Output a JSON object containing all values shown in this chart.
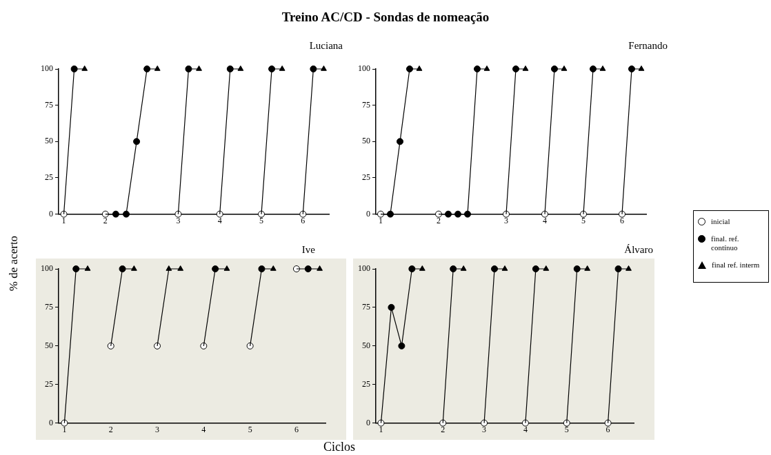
{
  "chart_data": [
    {
      "type": "line",
      "title": "Treino AC/CD - Sondas de nomeação",
      "ylabel": "% de acerto",
      "xlabel": "Ciclos",
      "subtitle": "Luciana",
      "ylim": [
        0,
        100
      ],
      "yticks": [
        0,
        25,
        50,
        75,
        100
      ],
      "grid": false,
      "categories": [
        "1",
        null,
        null,
        null,
        "2",
        null,
        null,
        null,
        null,
        null,
        null,
        "3",
        null,
        null,
        null,
        "4",
        null,
        null,
        null,
        "5",
        null,
        null,
        null,
        "6",
        null,
        null
      ],
      "series": [
        {
          "type": "line",
          "marker": "none",
          "color": "#000000",
          "values": [
            0,
            100,
            100,
            null,
            0,
            0,
            0,
            50,
            100,
            100,
            null,
            0,
            100,
            100,
            null,
            0,
            100,
            100,
            null,
            0,
            100,
            100,
            null,
            0,
            100,
            100
          ]
        },
        {
          "type": "scatter",
          "marker": "circle",
          "color": "#ffffff",
          "values": [
            0,
            null,
            null,
            null,
            0,
            null,
            null,
            null,
            null,
            null,
            null,
            0,
            null,
            null,
            null,
            0,
            null,
            null,
            null,
            0,
            null,
            null,
            null,
            0,
            null,
            null
          ]
        },
        {
          "type": "scatter",
          "marker": "circle",
          "color": "#000000",
          "values": [
            null,
            100,
            null,
            null,
            null,
            0,
            0,
            50,
            100,
            null,
            null,
            null,
            100,
            null,
            null,
            null,
            100,
            null,
            null,
            null,
            100,
            null,
            null,
            null,
            100,
            null
          ]
        },
        {
          "type": "scatter",
          "marker": "triangle",
          "color": "#000000",
          "values": [
            null,
            null,
            100,
            null,
            null,
            null,
            null,
            null,
            null,
            100,
            null,
            null,
            null,
            100,
            null,
            null,
            null,
            100,
            null,
            null,
            null,
            100,
            null,
            null,
            null,
            100
          ]
        }
      ]
    },
    {
      "type": "line",
      "subtitle": "Fernando",
      "legend": "right",
      "ylim": [
        0,
        100
      ],
      "yticks": [
        0,
        25,
        50,
        75,
        100
      ],
      "grid": false,
      "categories": [
        "1",
        null,
        null,
        null,
        null,
        null,
        "2",
        null,
        null,
        null,
        null,
        null,
        null,
        "3",
        null,
        null,
        null,
        "4",
        null,
        null,
        null,
        "5",
        null,
        null,
        null,
        "6",
        null,
        null
      ],
      "series": [
        {
          "type": "line",
          "marker": "none",
          "color": "#000000",
          "values": [
            0,
            0,
            50,
            100,
            100,
            null,
            0,
            0,
            0,
            0,
            100,
            100,
            null,
            0,
            100,
            100,
            null,
            0,
            100,
            100,
            null,
            0,
            100,
            100,
            null,
            0,
            100,
            100
          ]
        },
        {
          "type": "scatter",
          "name": "inicial",
          "marker": "circle",
          "color": "#ffffff",
          "values": [
            0,
            null,
            null,
            null,
            null,
            null,
            0,
            null,
            null,
            null,
            null,
            null,
            null,
            0,
            null,
            null,
            null,
            0,
            null,
            null,
            null,
            0,
            null,
            null,
            null,
            0,
            null,
            null
          ]
        },
        {
          "type": "scatter",
          "name": "final. ref. contínuo",
          "marker": "circle",
          "color": "#000000",
          "values": [
            null,
            0,
            50,
            100,
            null,
            null,
            null,
            0,
            0,
            0,
            100,
            null,
            null,
            null,
            100,
            null,
            null,
            null,
            100,
            null,
            null,
            null,
            100,
            null,
            null,
            null,
            100,
            null
          ]
        },
        {
          "type": "scatter",
          "name": "final ref. interm",
          "marker": "triangle",
          "color": "#000000",
          "values": [
            null,
            null,
            null,
            null,
            100,
            null,
            null,
            null,
            null,
            null,
            null,
            100,
            null,
            null,
            null,
            100,
            null,
            null,
            null,
            100,
            null,
            null,
            null,
            100,
            null,
            null,
            null,
            100
          ]
        }
      ]
    },
    {
      "type": "line",
      "subtitle": "Ive",
      "ylim": [
        0,
        100
      ],
      "yticks": [
        0,
        25,
        50,
        75,
        100
      ],
      "grid": false,
      "categories": [
        "1",
        null,
        null,
        null,
        "2",
        null,
        null,
        null,
        "3",
        null,
        null,
        null,
        "4",
        null,
        null,
        null,
        "5",
        null,
        null,
        null,
        "6",
        null,
        null
      ],
      "series": [
        {
          "type": "line",
          "marker": "none",
          "color": "#000000",
          "values": [
            0,
            100,
            100,
            null,
            50,
            100,
            100,
            null,
            50,
            100,
            100,
            null,
            50,
            100,
            100,
            null,
            50,
            100,
            100,
            null,
            100,
            100,
            100
          ]
        },
        {
          "type": "scatter",
          "marker": "circle",
          "color": "#ffffff",
          "values": [
            0,
            null,
            null,
            null,
            50,
            null,
            null,
            null,
            50,
            null,
            null,
            null,
            50,
            null,
            null,
            null,
            50,
            null,
            null,
            null,
            100,
            null,
            null
          ]
        },
        {
          "type": "scatter",
          "marker": "circle",
          "color": "#000000",
          "values": [
            null,
            100,
            null,
            null,
            null,
            100,
            null,
            null,
            null,
            null,
            null,
            null,
            null,
            100,
            null,
            null,
            null,
            100,
            null,
            null,
            null,
            100,
            null
          ]
        },
        {
          "type": "scatter",
          "marker": "triangle",
          "color": "#000000",
          "values": [
            null,
            null,
            100,
            null,
            null,
            null,
            100,
            null,
            null,
            100,
            100,
            null,
            null,
            null,
            100,
            null,
            null,
            null,
            100,
            null,
            null,
            null,
            100
          ]
        }
      ]
    },
    {
      "type": "line",
      "subtitle": "Álvaro",
      "ylim": [
        0,
        100
      ],
      "yticks": [
        0,
        25,
        50,
        75,
        100
      ],
      "grid": false,
      "categories": [
        "1",
        null,
        null,
        null,
        null,
        null,
        "2",
        null,
        null,
        null,
        "3",
        null,
        null,
        null,
        "4",
        null,
        null,
        null,
        "5",
        null,
        null,
        null,
        "6",
        null,
        null
      ],
      "series": [
        {
          "type": "line",
          "marker": "none",
          "color": "#000000",
          "values": [
            0,
            75,
            50,
            100,
            100,
            null,
            0,
            100,
            100,
            null,
            0,
            100,
            100,
            null,
            0,
            100,
            100,
            null,
            0,
            100,
            100,
            null,
            0,
            100,
            100
          ]
        },
        {
          "type": "scatter",
          "marker": "circle",
          "color": "#ffffff",
          "values": [
            0,
            null,
            null,
            null,
            null,
            null,
            0,
            null,
            null,
            null,
            0,
            null,
            null,
            null,
            0,
            null,
            null,
            null,
            0,
            null,
            null,
            null,
            0,
            null,
            null
          ]
        },
        {
          "type": "scatter",
          "marker": "circle",
          "color": "#000000",
          "values": [
            null,
            75,
            50,
            100,
            null,
            null,
            null,
            100,
            null,
            null,
            null,
            100,
            null,
            null,
            null,
            100,
            null,
            null,
            null,
            100,
            null,
            null,
            null,
            100,
            null
          ]
        },
        {
          "type": "scatter",
          "marker": "triangle",
          "color": "#000000",
          "values": [
            null,
            null,
            null,
            null,
            100,
            null,
            null,
            null,
            100,
            null,
            null,
            null,
            100,
            null,
            null,
            null,
            100,
            null,
            null,
            null,
            100,
            null,
            null,
            null,
            100
          ]
        }
      ]
    }
  ]
}
